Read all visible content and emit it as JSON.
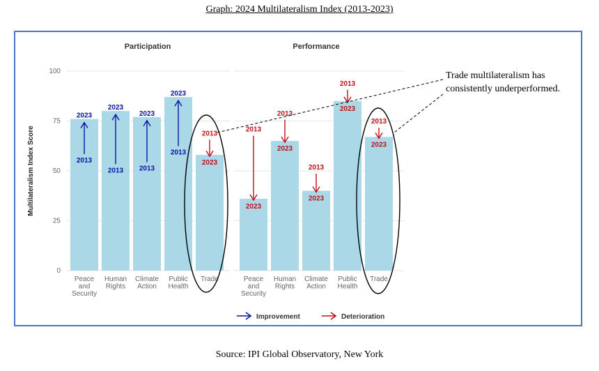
{
  "title": "Graph: 2024 Multilateralism Index (2013-2023)",
  "source": "Source: IPI Global Observatory, New York",
  "annotation": [
    "Trade multilateralism has",
    "consistently underperformed."
  ],
  "legend": {
    "improvement": "Improvement",
    "deterioration": "Deterioration"
  },
  "colors": {
    "bar": "#aad8e6",
    "improvement": "#0a14a0",
    "deterioration": "#c0101a"
  },
  "chart_data": {
    "type": "bar",
    "ylabel": "Multilateralism Index Score",
    "ylim": [
      0,
      100
    ],
    "yticks": [
      0,
      25,
      50,
      75,
      100
    ],
    "legend_position": "bottom",
    "panels": [
      {
        "name": "Participation",
        "categories": [
          "Peace and Security",
          "Human Rights",
          "Climate Action",
          "Public Health",
          "Trade"
        ],
        "category_lines": [
          [
            "Peace",
            "and",
            "Security"
          ],
          [
            "Human",
            "Rights"
          ],
          [
            "Climate",
            "Action"
          ],
          [
            "Public",
            "Health"
          ],
          [
            "Trade"
          ]
        ],
        "series": [
          {
            "name": "2013",
            "values": [
              57,
              52,
              53,
              61,
              67
            ]
          },
          {
            "name": "2023",
            "values": [
              76,
              80,
              77,
              87,
              58
            ]
          }
        ]
      },
      {
        "name": "Performance",
        "categories": [
          "Peace and Security",
          "Human Rights",
          "Climate Action",
          "Public Health",
          "Trade"
        ],
        "category_lines": [
          [
            "Peace",
            "and",
            "Security"
          ],
          [
            "Human",
            "Rights"
          ],
          [
            "Climate",
            "Action"
          ],
          [
            "Public",
            "Health"
          ],
          [
            "Trade"
          ]
        ],
        "series": [
          {
            "name": "2013",
            "values": [
              69,
              77,
              50,
              92,
              73
            ]
          },
          {
            "name": "2023",
            "values": [
              36,
              65,
              40,
              85,
              67
            ]
          }
        ]
      }
    ]
  }
}
